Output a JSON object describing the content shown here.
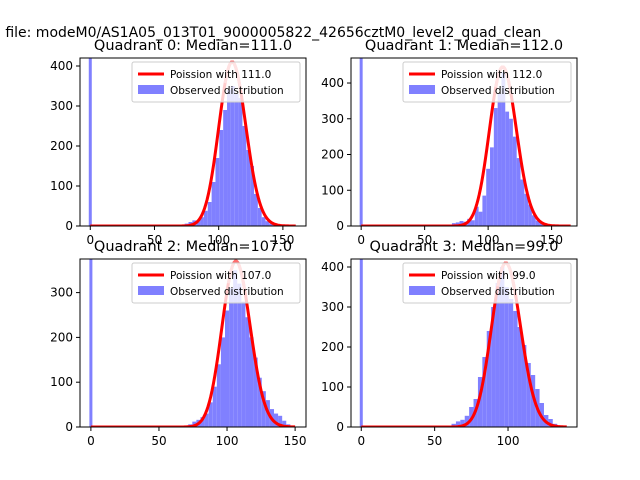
{
  "figure": {
    "suptitle": "n file: modeM0/AS1A05_013T01_9000005822_42656cztM0_level2_quad_clean"
  },
  "colors": {
    "hist": "#8080ff",
    "poisson": "#ff0000",
    "poisson_alpha_overlay": "#ff8080",
    "axes": "#000000"
  },
  "chart_data": [
    {
      "type": "bar",
      "title": "Quadrant 0: Median=111.0",
      "legend_placement": "upper-right",
      "legend": [
        {
          "name": "Poission with 111.0",
          "color": "#ff0000"
        },
        {
          "name": "Observed distribution",
          "color": "#8080ff"
        }
      ],
      "xlim": [
        -8,
        168
      ],
      "ylim": [
        0,
        420
      ],
      "xticks": [
        "0",
        "50",
        "100",
        "150"
      ],
      "yticks": [
        "0",
        "100",
        "200",
        "300",
        "400"
      ],
      "xtick_values": [
        0,
        50,
        100,
        150
      ],
      "ytick_values": [
        0,
        100,
        200,
        300,
        400
      ],
      "median": 111.0,
      "bin_width": 3,
      "spike_at_zero": 425,
      "hist_x": [
        72,
        75,
        78,
        81,
        84,
        87,
        90,
        93,
        96,
        99,
        102,
        105,
        108,
        111,
        114,
        117,
        120,
        123,
        126,
        129,
        132,
        135,
        138,
        141,
        144,
        147
      ],
      "hist_values": [
        3,
        6,
        10,
        14,
        12,
        22,
        38,
        60,
        110,
        170,
        240,
        290,
        340,
        350,
        330,
        320,
        250,
        190,
        150,
        80,
        45,
        22,
        12,
        6,
        3,
        1
      ],
      "poisson_series": {
        "name": "Poission with 111.0",
        "mu": 111.0,
        "x_range": [
          0,
          160
        ],
        "peak": 410
      }
    },
    {
      "type": "bar",
      "title": "Quadrant 1: Median=112.0",
      "legend_placement": "upper-right",
      "legend": [
        {
          "name": "Poission with 112.0",
          "color": "#ff0000"
        },
        {
          "name": "Observed distribution",
          "color": "#8080ff"
        }
      ],
      "xlim": [
        -8,
        170
      ],
      "ylim": [
        0,
        470
      ],
      "xticks": [
        "0",
        "50",
        "100",
        "150"
      ],
      "yticks": [
        "0",
        "100",
        "200",
        "300",
        "400"
      ],
      "xtick_values": [
        0,
        50,
        100,
        150
      ],
      "ytick_values": [
        0,
        100,
        200,
        300,
        400
      ],
      "median": 112.0,
      "bin_width": 3,
      "spike_at_zero": 470,
      "hist_x": [
        70,
        73,
        76,
        79,
        82,
        85,
        88,
        91,
        94,
        97,
        100,
        103,
        106,
        109,
        112,
        115,
        118,
        121,
        124,
        127,
        130,
        133,
        136,
        139,
        142,
        145,
        148,
        151
      ],
      "hist_values": [
        4,
        8,
        10,
        14,
        12,
        20,
        16,
        54,
        40,
        85,
        160,
        220,
        330,
        370,
        430,
        320,
        300,
        250,
        190,
        130,
        90,
        60,
        30,
        15,
        8,
        5,
        3,
        1
      ],
      "poisson_series": {
        "name": "Poission with 112.0",
        "mu": 112.0,
        "x_range": [
          0,
          165
        ],
        "peak": 445
      }
    },
    {
      "type": "bar",
      "title": "Quadrant 2: Median=107.0",
      "legend_placement": "upper-right",
      "legend": [
        {
          "name": "Poission with 107.0",
          "color": "#ff0000"
        },
        {
          "name": "Observed distribution",
          "color": "#8080ff"
        }
      ],
      "xlim": [
        -8,
        158
      ],
      "ylim": [
        0,
        375
      ],
      "xticks": [
        "0",
        "50",
        "100",
        "150"
      ],
      "yticks": [
        "0",
        "100",
        "200",
        "300"
      ],
      "xtick_values": [
        0,
        50,
        100,
        150
      ],
      "ytick_values": [
        0,
        100,
        200,
        300
      ],
      "median": 107.0,
      "bin_width": 3,
      "spike_at_zero": 380,
      "hist_x": [
        70,
        73,
        76,
        79,
        82,
        85,
        88,
        91,
        94,
        97,
        100,
        103,
        106,
        109,
        112,
        115,
        118,
        121,
        124,
        127,
        130,
        133,
        136,
        139,
        142,
        145
      ],
      "hist_values": [
        3,
        6,
        12,
        16,
        22,
        30,
        55,
        90,
        140,
        200,
        260,
        310,
        350,
        320,
        280,
        245,
        200,
        155,
        110,
        80,
        60,
        40,
        30,
        25,
        14,
        6
      ],
      "poisson_series": {
        "name": "Poission with 107.0",
        "mu": 107.0,
        "x_range": [
          0,
          150
        ],
        "peak": 370
      }
    },
    {
      "type": "bar",
      "title": "Quadrant 3: Median=99.0",
      "legend_placement": "upper-right",
      "legend": [
        {
          "name": "Poission with 99.0",
          "color": "#ff0000"
        },
        {
          "name": "Observed distribution",
          "color": "#8080ff"
        }
      ],
      "xlim": [
        -7,
        147
      ],
      "ylim": [
        0,
        420
      ],
      "xticks": [
        "0",
        "50",
        "100"
      ],
      "yticks": [
        "0",
        "100",
        "200",
        "300",
        "400"
      ],
      "xtick_values": [
        0,
        50,
        100
      ],
      "ytick_values": [
        0,
        100,
        200,
        300,
        400
      ],
      "median": 99.0,
      "bin_width": 3,
      "spike_at_zero": 425,
      "hist_x": [
        60,
        63,
        66,
        69,
        72,
        75,
        78,
        81,
        84,
        87,
        90,
        93,
        96,
        99,
        102,
        105,
        108,
        111,
        114,
        117,
        120,
        123,
        126,
        129,
        132,
        135
      ],
      "hist_values": [
        3,
        8,
        14,
        18,
        28,
        50,
        70,
        125,
        175,
        240,
        300,
        360,
        400,
        350,
        320,
        290,
        250,
        205,
        160,
        130,
        95,
        60,
        30,
        20,
        8,
        3
      ],
      "poisson_series": {
        "name": "Poission with 99.0",
        "mu": 99.0,
        "x_range": [
          0,
          140
        ],
        "peak": 410
      }
    }
  ]
}
